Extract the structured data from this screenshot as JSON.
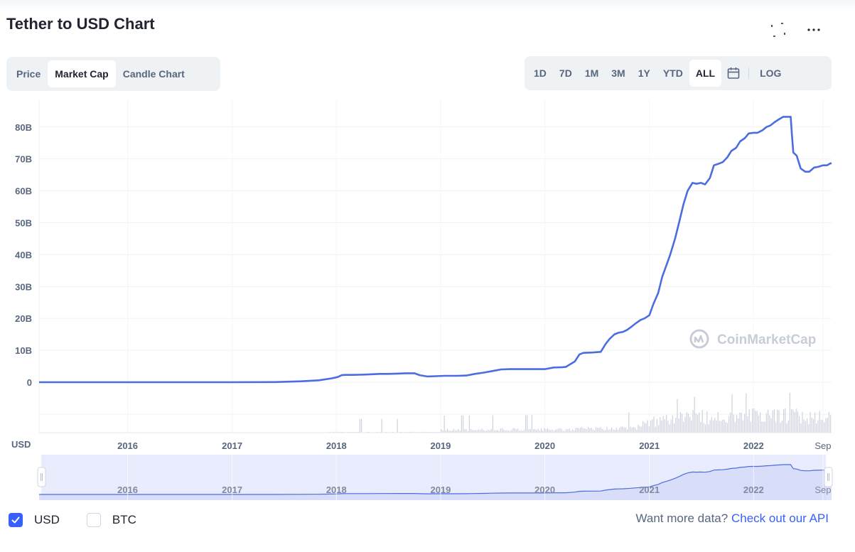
{
  "title": "Tether to USD Chart",
  "icons": {
    "expand": "fullscreen-icon",
    "more": "more-options-icon",
    "calendar": "calendar-icon",
    "checkmark": "checkmark-icon",
    "watermark": "coinmarketcap-logo-icon"
  },
  "view_tabs": [
    {
      "label": "Price",
      "active": false
    },
    {
      "label": "Market Cap",
      "active": true
    },
    {
      "label": "Candle Chart",
      "active": false
    }
  ],
  "range_tabs": [
    {
      "label": "1D",
      "active": false
    },
    {
      "label": "7D",
      "active": false
    },
    {
      "label": "1M",
      "active": false
    },
    {
      "label": "3M",
      "active": false
    },
    {
      "label": "1Y",
      "active": false
    },
    {
      "label": "YTD",
      "active": false
    },
    {
      "label": "ALL",
      "active": true
    }
  ],
  "log_label": "LOG",
  "watermark": "CoinMarketCap",
  "currency_label": "USD",
  "currencies": [
    {
      "label": "USD",
      "checked": true
    },
    {
      "label": "BTC",
      "checked": false
    }
  ],
  "api_prompt": "Want more data?",
  "api_link": "Check out our API",
  "colors": {
    "line": "#4b6ddf",
    "accent": "#3861fb",
    "navigator_fill": "#e8ecfd",
    "volume": "#cdd2de"
  },
  "chart_data": {
    "type": "line",
    "series": [
      {
        "x": [
          "2015-02-25",
          "2015-06-01",
          "2016-01-01",
          "2016-06-01",
          "2017-01-01",
          "2017-06-01",
          "2017-09-01",
          "2017-11-01",
          "2017-12-15",
          "2018-01-05",
          "2018-01-20",
          "2018-02-01",
          "2018-03-01",
          "2018-04-15",
          "2018-06-01",
          "2018-07-01",
          "2018-08-01",
          "2018-09-01",
          "2018-10-01",
          "2018-10-20",
          "2018-11-15",
          "2018-12-15",
          "2019-01-15",
          "2019-03-01",
          "2019-04-01",
          "2019-05-01",
          "2019-06-01",
          "2019-07-01",
          "2019-08-01",
          "2019-09-01",
          "2019-10-15",
          "2019-12-01",
          "2020-01-01",
          "2020-02-01",
          "2020-03-01",
          "2020-03-15",
          "2020-04-15",
          "2020-05-01",
          "2020-05-15",
          "2020-06-15",
          "2020-07-15",
          "2020-08-01",
          "2020-08-15",
          "2020-09-01",
          "2020-09-15",
          "2020-10-01",
          "2020-10-15",
          "2020-11-01",
          "2020-11-15",
          "2020-12-01",
          "2020-12-15",
          "2021-01-01",
          "2021-01-15",
          "2021-02-01",
          "2021-02-15",
          "2021-03-01",
          "2021-03-15",
          "2021-04-01",
          "2021-04-15",
          "2021-05-01",
          "2021-05-15",
          "2021-06-01",
          "2021-06-15",
          "2021-07-01",
          "2021-07-15",
          "2021-08-01",
          "2021-08-15",
          "2021-09-01",
          "2021-09-15",
          "2021-10-01",
          "2021-10-15",
          "2021-11-01",
          "2021-11-15",
          "2021-12-01",
          "2021-12-15",
          "2022-01-01",
          "2022-01-15",
          "2022-02-01",
          "2022-02-15",
          "2022-03-01",
          "2022-03-15",
          "2022-04-01",
          "2022-04-15",
          "2022-05-01",
          "2022-05-11",
          "2022-05-15",
          "2022-05-20",
          "2022-06-01",
          "2022-06-15",
          "2022-07-01",
          "2022-07-15",
          "2022-08-01",
          "2022-08-15",
          "2022-09-01",
          "2022-09-15",
          "2022-09-25",
          "2022-10-01"
        ],
        "y": [
          0,
          0,
          0,
          0,
          0,
          0.05,
          0.3,
          0.6,
          1.2,
          1.6,
          2.2,
          2.3,
          2.3,
          2.4,
          2.6,
          2.6,
          2.7,
          2.8,
          2.8,
          2.2,
          1.8,
          1.9,
          2.0,
          2.0,
          2.1,
          2.6,
          3.0,
          3.5,
          4.0,
          4.1,
          4.1,
          4.1,
          4.1,
          4.6,
          4.7,
          4.8,
          6.5,
          8.7,
          9.2,
          9.3,
          9.5,
          12.0,
          13.6,
          15.0,
          15.5,
          15.8,
          16.4,
          17.5,
          18.5,
          19.5,
          20.0,
          21.0,
          24.5,
          28.0,
          33.0,
          36.5,
          40.0,
          45.0,
          50.0,
          56.0,
          60.0,
          62.5,
          62.2,
          62.5,
          62.0,
          64.0,
          68.0,
          68.5,
          69.0,
          70.5,
          72.5,
          73.5,
          75.5,
          76.5,
          78.0,
          78.2,
          78.2,
          79.0,
          80.0,
          80.5,
          81.5,
          82.5,
          83.2,
          83.2,
          83.2,
          78.0,
          72.0,
          71.0,
          67.0,
          66.0,
          66.0,
          67.3,
          67.5,
          68.0,
          68.0,
          68.5,
          68.7
        ]
      }
    ],
    "y_ticks": [
      "0",
      "10B",
      "20B",
      "30B",
      "40B",
      "50B",
      "60B",
      "70B",
      "80B"
    ],
    "x_ticks": [
      "2016",
      "2017",
      "2018",
      "2019",
      "2020",
      "2021",
      "2022",
      "Sep"
    ],
    "navigator_x_ticks": [
      "2016",
      "2017",
      "2018",
      "2019",
      "2020",
      "2021",
      "2022",
      "Sep"
    ],
    "ylim": [
      0,
      90000000000
    ],
    "xlim": [
      "2015-02-25",
      "2022-10-01"
    ],
    "y_unit": "billions USD",
    "grid": true,
    "log_scale": false,
    "volume_bars": true
  }
}
